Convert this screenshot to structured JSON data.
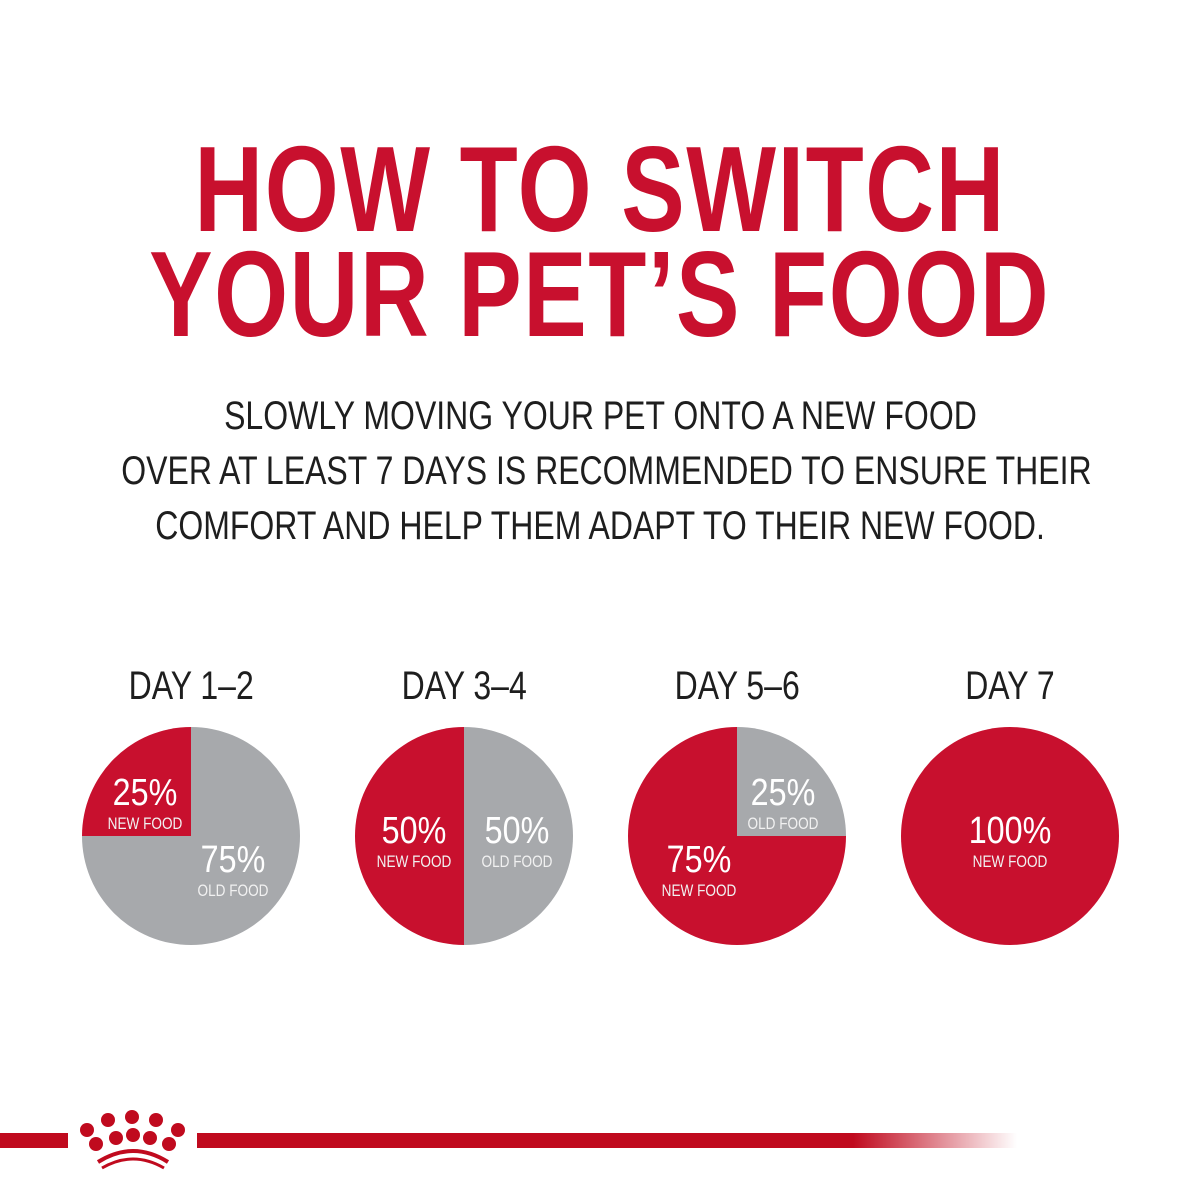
{
  "title": {
    "line1": "HOW TO SWITCH",
    "line2": "YOUR PET’S FOOD"
  },
  "subtitle": {
    "line1": "SLOWLY MOVING YOUR PET ONTO A NEW FOOD",
    "line2": "OVER AT LEAST 7 DAYS IS RECOMMENDED TO ENSURE THEIR",
    "line3": "COMFORT AND HELP THEM ADAPT TO THEIR NEW FOOD."
  },
  "colors": {
    "new_food": "#c8102e",
    "old_food": "#a7a9ac",
    "title": "#c8102e",
    "text": "#1e1e1e"
  },
  "logo": {
    "icon": "crown-icon"
  },
  "chart_data": [
    {
      "type": "pie",
      "title": "DAY 1–2",
      "slices": [
        {
          "label": "NEW FOOD",
          "value": 25,
          "text": "25%"
        },
        {
          "label": "OLD FOOD",
          "value": 75,
          "text": "75%"
        }
      ]
    },
    {
      "type": "pie",
      "title": "DAY 3–4",
      "slices": [
        {
          "label": "NEW FOOD",
          "value": 50,
          "text": "50%"
        },
        {
          "label": "OLD FOOD",
          "value": 50,
          "text": "50%"
        }
      ]
    },
    {
      "type": "pie",
      "title": "DAY 5–6",
      "slices": [
        {
          "label": "NEW FOOD",
          "value": 75,
          "text": "75%"
        },
        {
          "label": "OLD FOOD",
          "value": 25,
          "text": "25%"
        }
      ]
    },
    {
      "type": "pie",
      "title": "DAY 7",
      "slices": [
        {
          "label": "NEW FOOD",
          "value": 100,
          "text": "100%"
        }
      ]
    }
  ]
}
